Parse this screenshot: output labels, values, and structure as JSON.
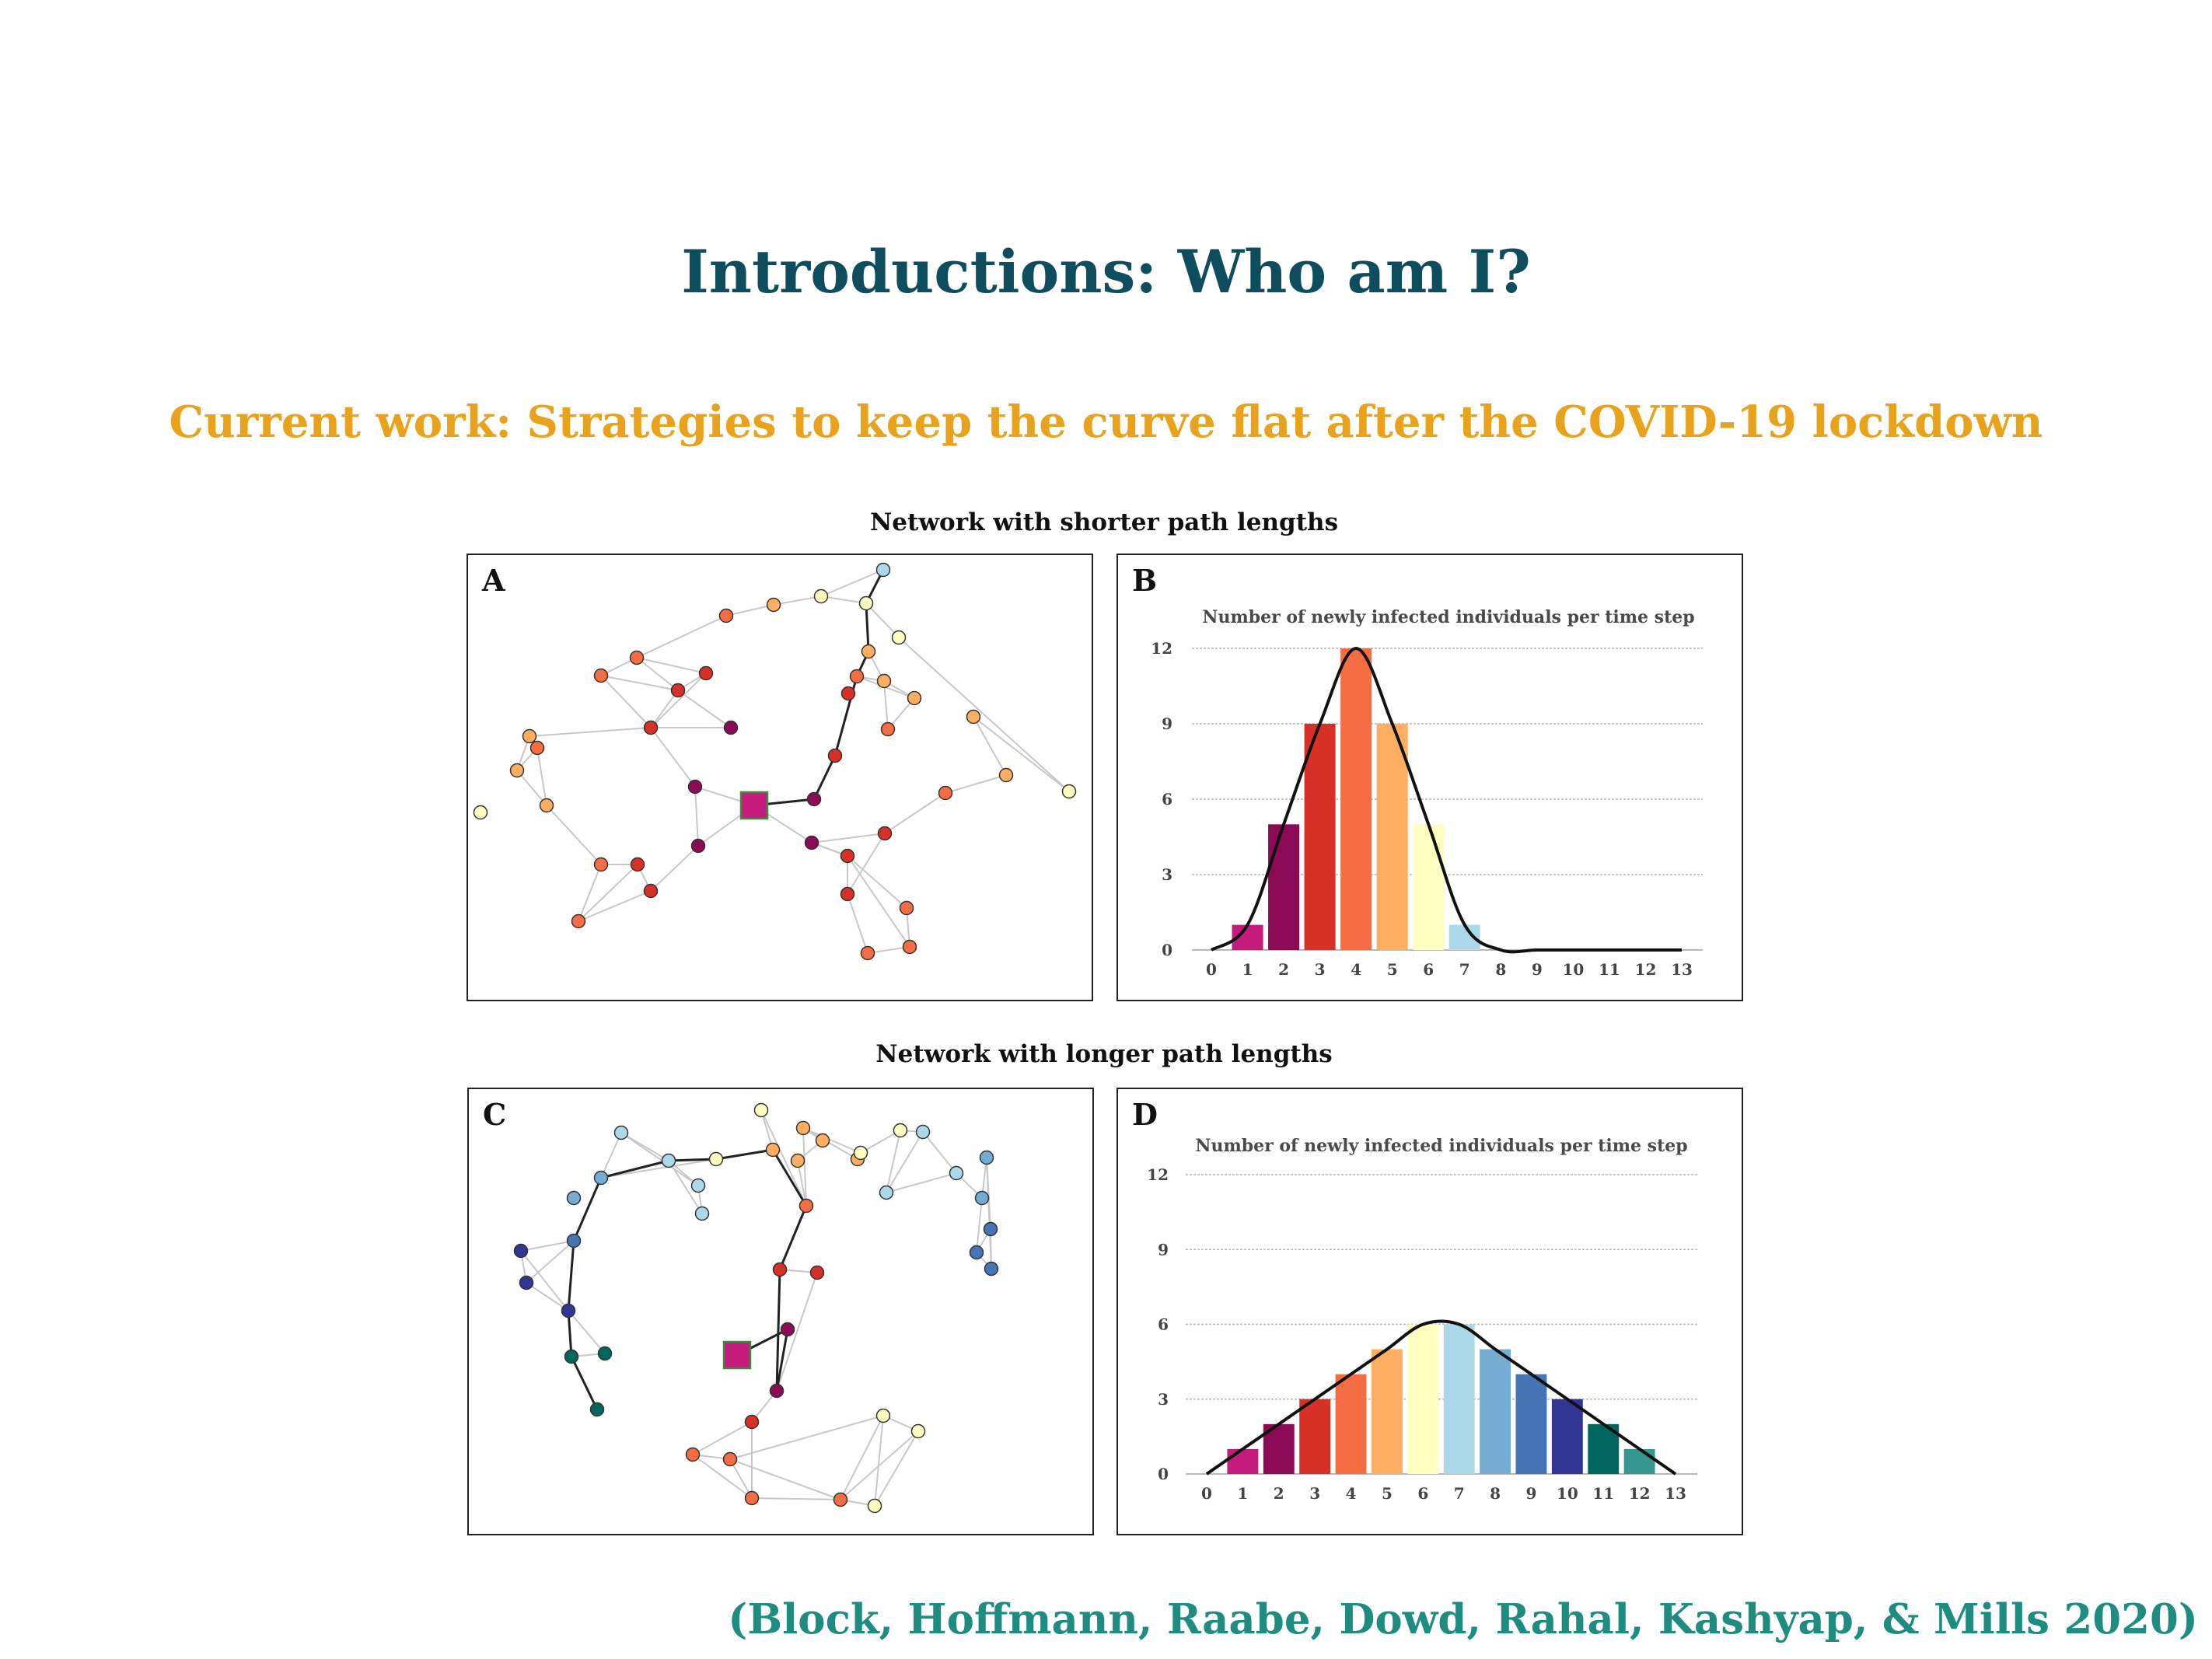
{
  "slide": {
    "title": "Introductions: Who am I?",
    "subtitle": "Current work: Strategies to keep the curve flat after the COVID-19 lockdown",
    "citation": "(Block, Hoffmann, Raabe, Dowd, Rahal, Kashyap, & Mills 2020)",
    "section_top_heading": "Network with shorter path lengths",
    "section_bottom_heading": "Network with longer path lengths"
  },
  "panels": {
    "a": {
      "letter": "A"
    },
    "b": {
      "letter": "B"
    },
    "c": {
      "letter": "C"
    },
    "d": {
      "letter": "D"
    }
  },
  "colors": {
    "bars": [
      "#c51b7d",
      "#8c0a55",
      "#d73027",
      "#f46d43",
      "#fdae61",
      "#ffffbf",
      "#abd9e9",
      "#74add1",
      "#4575b4",
      "#313695",
      "#01665e",
      "#35978f"
    ],
    "edge": "#c8c8c8",
    "path_edge": "#222222",
    "seed": "#c51b7d",
    "seed_border": "#3c8c3c"
  },
  "chart_data": [
    {
      "type": "bar",
      "panel": "B",
      "title": "Number of newly infected individuals per time step",
      "categories": [
        "0",
        "1",
        "2",
        "3",
        "4",
        "5",
        "6",
        "7",
        "8",
        "9",
        "10",
        "11",
        "12",
        "13"
      ],
      "values": [
        0,
        1,
        5,
        9,
        12,
        9,
        5,
        1,
        0,
        0,
        0,
        0,
        0,
        0
      ],
      "bar_colors": [
        "",
        "#c51b7d",
        "#8c0a55",
        "#d73027",
        "#f46d43",
        "#fdae61",
        "#ffffbf",
        "#abd9e9",
        "",
        "",
        "",
        "",
        "",
        ""
      ],
      "yticks": [
        0,
        3,
        6,
        9,
        12
      ],
      "ylim": [
        0,
        12
      ],
      "grid": true,
      "curve": "smoothed line over bars"
    },
    {
      "type": "bar",
      "panel": "D",
      "title": "Number of newly infected individuals per time step",
      "categories": [
        "0",
        "1",
        "2",
        "3",
        "4",
        "5",
        "6",
        "7",
        "8",
        "9",
        "10",
        "11",
        "12",
        "13"
      ],
      "values": [
        0,
        1,
        2,
        3,
        4,
        5,
        6,
        6,
        5,
        4,
        3,
        2,
        1,
        0
      ],
      "bar_colors": [
        "",
        "#c51b7d",
        "#8c0a55",
        "#d73027",
        "#f46d43",
        "#fdae61",
        "#ffffbf",
        "#abd9e9",
        "#74add1",
        "#4575b4",
        "#313695",
        "#01665e",
        "#35978f",
        ""
      ],
      "yticks": [
        0,
        3,
        6,
        9,
        12
      ],
      "ylim": [
        0,
        12
      ],
      "grid": true,
      "curve": "smoothed line over bars"
    }
  ]
}
